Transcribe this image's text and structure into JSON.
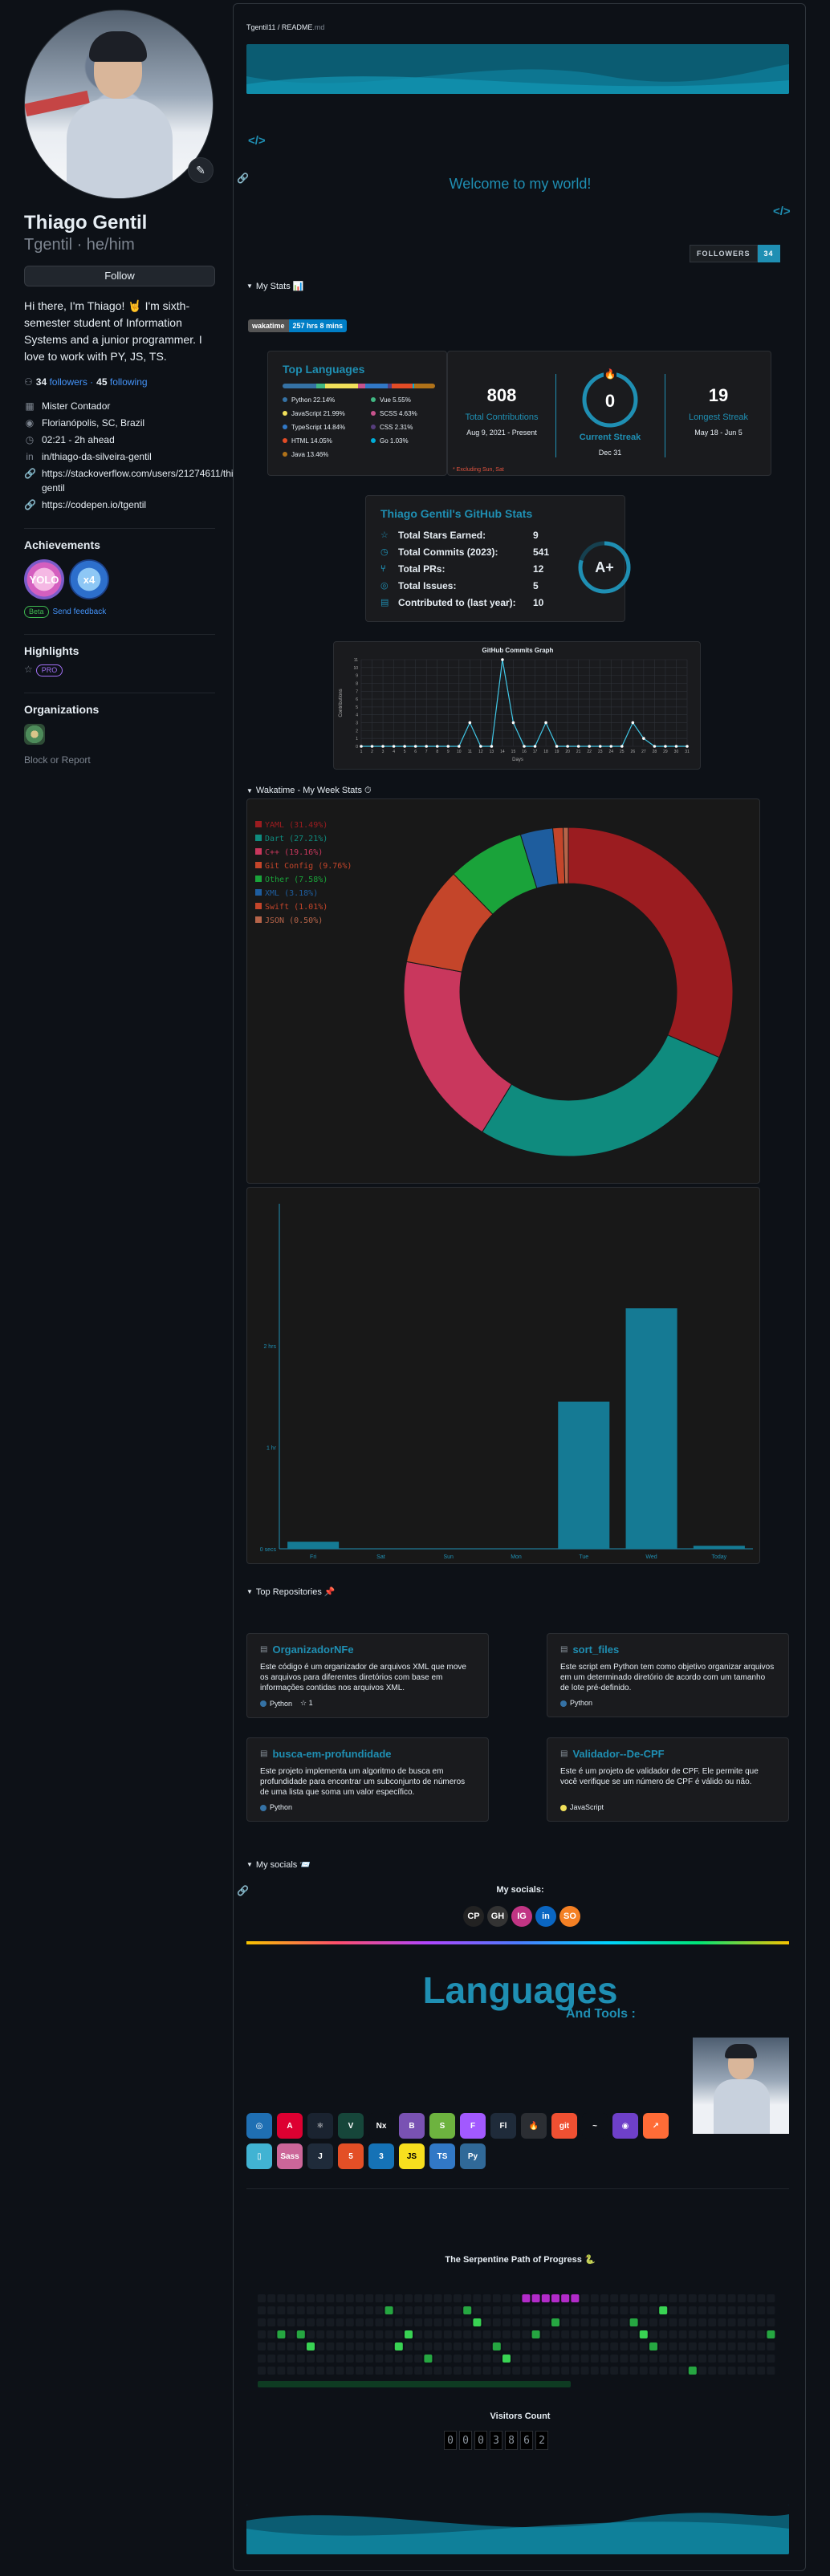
{
  "profile": {
    "name": "Thiago Gentil",
    "login": "Tgentil · he/him",
    "follow_label": "Follow",
    "bio": "Hi there, I'm Thiago! 🤘 I'm sixth-semester student of Information Systems and a junior programmer. I love to work with PY, JS, TS.",
    "followers_count": "34",
    "followers_label": "followers ·",
    "following_count": "45",
    "following_label": "following",
    "details": [
      {
        "icon": "building-icon",
        "glyph": "▦",
        "text": "Mister Contador"
      },
      {
        "icon": "location-icon",
        "glyph": "◉",
        "text": "Florianópolis, SC, Brazil"
      },
      {
        "icon": "clock-icon",
        "glyph": "◷",
        "text": "02:21 - 2h ahead"
      },
      {
        "icon": "linkedin-icon",
        "glyph": "in",
        "text": "in/thiago-da-silveira-gentil"
      },
      {
        "icon": "link-icon",
        "glyph": "🔗",
        "text": "https://stackoverflow.com/users/21274611/thiago-gentil"
      },
      {
        "icon": "link-icon",
        "glyph": "🔗",
        "text": "https://codepen.io/tgentil"
      }
    ],
    "achievements_title": "Achievements",
    "achievement_1": "YOLO",
    "achievement_2": "x4",
    "beta_label": "Beta",
    "feedback_label": "Send feedback",
    "highlights_title": "Highlights",
    "pro_label": "PRO",
    "organizations_title": "Organizations",
    "report_label": "Block or Report"
  },
  "readme": {
    "crumb_repo": "Tgentil11",
    "crumb_sep": " / ",
    "crumb_file": "README",
    "crumb_ext": ".md",
    "code_glyph": "</>",
    "link_glyph": "🔗",
    "welcome": "Welcome to my world!",
    "followers_badge_label": "FOLLOWERS",
    "followers_badge_value": "34",
    "my_stats_heading": "My Stats 📊",
    "wakatime_badge_label": "wakatime",
    "wakatime_badge_value": "257 hrs 8 mins",
    "wakatime_heading": "Wakatime - My Week Stats ⏱",
    "top_repos_heading": "Top Repositories 📌",
    "socials_heading": "My socials 📨",
    "socials_title": "My socials:",
    "languages_title": "Languages",
    "languages_sub": "And Tools :",
    "serpent_title": "The Serpentine Path of Progress 🐍",
    "visitors_title": "Visitors Count",
    "visitors_digits": [
      "0",
      "0",
      "0",
      "3",
      "8",
      "6",
      "2"
    ]
  },
  "top_languages": {
    "title": "Top Languages",
    "items": [
      {
        "name": "Python",
        "pct": 22.14,
        "label": "Python 22.14%",
        "color": "#3572A5"
      },
      {
        "name": "Vue",
        "pct": 5.55,
        "label": "Vue 5.55%",
        "color": "#41b883"
      },
      {
        "name": "JavaScript",
        "pct": 21.99,
        "label": "JavaScript 21.99%",
        "color": "#f1e05a"
      },
      {
        "name": "SCSS",
        "pct": 4.63,
        "label": "SCSS 4.63%",
        "color": "#c6538c"
      },
      {
        "name": "TypeScript",
        "pct": 14.84,
        "label": "TypeScript 14.84%",
        "color": "#3178c6"
      },
      {
        "name": "CSS",
        "pct": 2.31,
        "label": "CSS 2.31%",
        "color": "#563d7c"
      },
      {
        "name": "HTML",
        "pct": 14.05,
        "label": "HTML 14.05%",
        "color": "#e34c26"
      },
      {
        "name": "Go",
        "pct": 1.03,
        "label": "Go 1.03%",
        "color": "#00ADD8"
      },
      {
        "name": "Java",
        "pct": 13.46,
        "label": "Java 13.46%",
        "color": "#b07219"
      }
    ]
  },
  "streak": {
    "total": "808",
    "total_label": "Total Contributions",
    "total_range": "Aug 9, 2021 - Present",
    "current": "0",
    "current_label": "Current Streak",
    "current_range": "Dec 31",
    "longest": "19",
    "longest_label": "Longest Streak",
    "longest_range": "May 18 - Jun 5",
    "note": "* Excluding Sun, Sat"
  },
  "gh_stats": {
    "title": "Thiago Gentil's GitHub Stats",
    "grade": "A+",
    "rows": [
      {
        "icon": "star-icon",
        "glyph": "☆",
        "label": "Total Stars Earned:",
        "value": "9"
      },
      {
        "icon": "clock-icon",
        "glyph": "◷",
        "label": "Total Commits (2023):",
        "value": "541"
      },
      {
        "icon": "pr-icon",
        "glyph": "⑂",
        "label": "Total PRs:",
        "value": "12"
      },
      {
        "icon": "issue-icon",
        "glyph": "◎",
        "label": "Total Issues:",
        "value": "5"
      },
      {
        "icon": "repo-icon",
        "glyph": "▤",
        "label": "Contributed to (last year):",
        "value": "10"
      }
    ]
  },
  "repos": [
    {
      "name": "OrganizadorNFe",
      "desc": "Este código é um organizador de arquivos XML que move os arquivos para diferentes diretórios com base em informações contidas nos arquivos XML.",
      "lang": "Python",
      "color": "#3572A5",
      "stars": "1"
    },
    {
      "name": "sort_files",
      "desc": "Este script em Python tem como objetivo organizar arquivos em um determinado diretório de acordo com um tamanho de lote pré-definido.",
      "lang": "Python",
      "color": "#3572A5",
      "stars": ""
    },
    {
      "name": "busca-em-profundidade",
      "desc": "Este projeto implementa um algoritmo de busca em profundidade para encontrar um subconjunto de números de uma lista que soma um valor específico.",
      "lang": "Python",
      "color": "#3572A5",
      "stars": ""
    },
    {
      "name": "Validador--De-CPF",
      "desc": "Este é um projeto de validador de CPF. Ele permite que você verifique se um número de CPF é válido ou não.",
      "lang": "JavaScript",
      "color": "#f1e05a",
      "stars": ""
    }
  ],
  "socials": [
    "CP",
    "GH",
    "IG",
    "in",
    "SO"
  ],
  "tools": [
    {
      "t": "◎",
      "c": "#1f6fb3"
    },
    {
      "t": "A",
      "c": "#dd0031"
    },
    {
      "t": "⚛",
      "c": "#1a2330"
    },
    {
      "t": "V",
      "c": "#16463a"
    },
    {
      "t": "Nx",
      "c": "#0d1117"
    },
    {
      "t": "B",
      "c": "#7952b3"
    },
    {
      "t": "S",
      "c": "#6db33f"
    },
    {
      "t": "F",
      "c": "#a259ff"
    },
    {
      "t": "Fl",
      "c": "#1f2b3a"
    },
    {
      "t": "🔥",
      "c": "#2b2e33"
    },
    {
      "t": "git",
      "c": "#f05032"
    },
    {
      "t": "~",
      "c": "#0d1117"
    },
    {
      "t": "◉",
      "c": "#6e40c9"
    },
    {
      "t": "↗",
      "c": "#ff6c37"
    },
    {
      "t": "▯",
      "c": "#41b3d3"
    },
    {
      "t": "Sass",
      "c": "#cc6699"
    },
    {
      "t": "J",
      "c": "#1f2b3a"
    },
    {
      "t": "5",
      "c": "#e34f26"
    },
    {
      "t": "3",
      "c": "#1572b6"
    },
    {
      "t": "JS",
      "c": "#f7df1e"
    },
    {
      "t": "TS",
      "c": "#3178c6"
    },
    {
      "t": "Py",
      "c": "#306998"
    }
  ],
  "chart_data": [
    {
      "type": "line",
      "title": "GitHub Commits Graph",
      "xlabel": "Days",
      "ylabel": "Contributions",
      "x": [
        1,
        2,
        3,
        4,
        5,
        6,
        7,
        8,
        9,
        10,
        11,
        12,
        13,
        14,
        15,
        16,
        17,
        18,
        19,
        20,
        21,
        22,
        23,
        24,
        25,
        26,
        27,
        28,
        29,
        30,
        31
      ],
      "series": [
        {
          "name": "contributions",
          "values": [
            0,
            0,
            0,
            0,
            0,
            0,
            0,
            0,
            0,
            0,
            3,
            0,
            0,
            11,
            3,
            0,
            0,
            3,
            0,
            0,
            0,
            0,
            0,
            0,
            0,
            3,
            1,
            0,
            0,
            0,
            0
          ]
        }
      ],
      "ylim": [
        0,
        11
      ]
    },
    {
      "type": "pie",
      "title": "Wakatime - My Week Stats",
      "series": [
        {
          "name": "languages",
          "values": [
            31.49,
            27.21,
            19.16,
            9.76,
            7.58,
            3.18,
            1.01,
            0.5
          ]
        }
      ],
      "categories": [
        "YAML",
        "Dart",
        "C++",
        "Git Config",
        "Other",
        "XML",
        "Swift",
        "JSON"
      ],
      "labels": [
        "YAML (31.49%)",
        "Dart (27.21%)",
        "C++ (19.16%)",
        "Git Config (9.76%)",
        "Other (7.58%)",
        "XML (3.18%)",
        "Swift (1.01%)",
        "JSON (0.50%)"
      ],
      "colors": [
        "#9b1c20",
        "#0f8b7e",
        "#c9375d",
        "#c4452a",
        "#1aa33a",
        "#1e5d9e",
        "#c4452a",
        "#b66449"
      ]
    },
    {
      "type": "bar",
      "title": "",
      "categories": [
        "Fri",
        "Sat",
        "Sun",
        "Mon",
        "Tue",
        "Wed",
        "Today"
      ],
      "values": [
        0.07,
        0,
        0,
        0,
        1.45,
        2.37,
        0.03
      ],
      "ylabels": [
        "2 hrs",
        "1 hr",
        "0 secs"
      ],
      "ylim": [
        0,
        3.4
      ]
    }
  ]
}
